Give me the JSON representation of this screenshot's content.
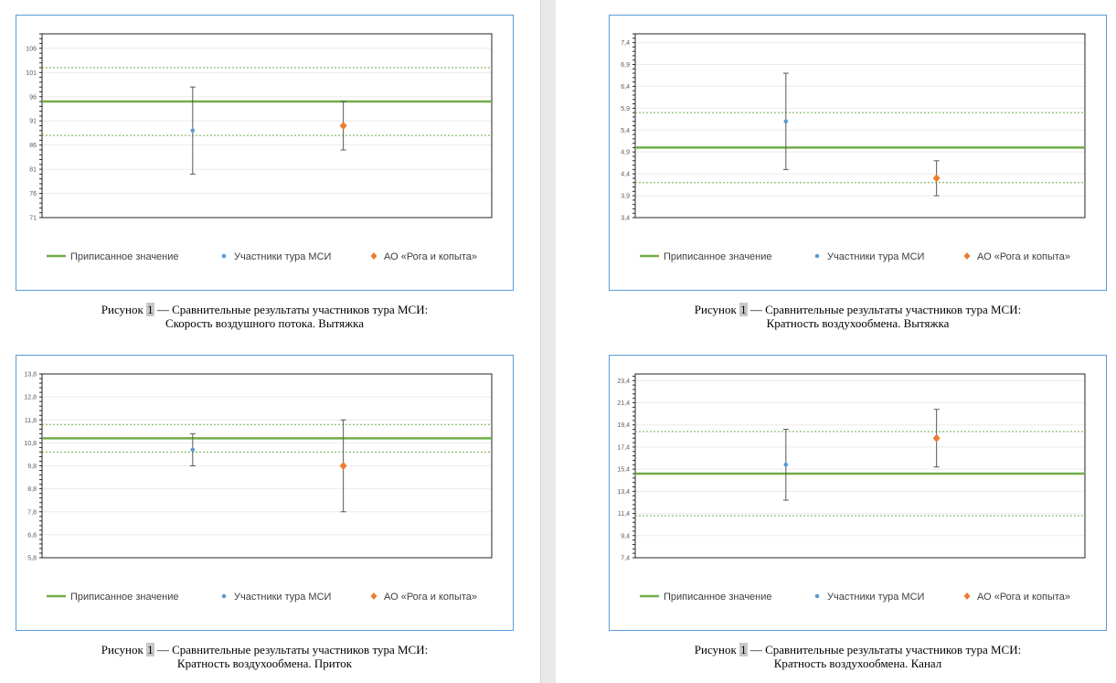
{
  "legend": {
    "assigned": "Приписанное значение",
    "participants": "Участники тура МСИ",
    "company": "АО «Рога и копыта»"
  },
  "colors": {
    "assigned": "#70ad47",
    "participants": "#5b9bd5",
    "company": "#ed7d31",
    "error_bar": "#595959",
    "frame": "#5b9bd5"
  },
  "caption_prefix": "Рисунок ",
  "figure_number": "1",
  "caption_line1_rest": " — Сравнительные результаты участников тура МСИ:",
  "chart_data": [
    {
      "type": "scatter",
      "subtitle": "Скорость воздушного потока. Вытяжка",
      "ylim": [
        71,
        109
      ],
      "yticks": [
        "71",
        "76",
        "81",
        "86",
        "91",
        "96",
        "101",
        "106"
      ],
      "assigned_value": 95,
      "limit_upper": 102,
      "limit_lower": 88,
      "series": [
        {
          "name": "Участники тура МСИ",
          "x": 1,
          "y": 89,
          "err_low": 80,
          "err_high": 98
        },
        {
          "name": "АО «Рога и копыта»",
          "x": 2,
          "y": 90,
          "err_low": 85,
          "err_high": 95
        }
      ]
    },
    {
      "type": "scatter",
      "subtitle": "Кратность воздухообмена. Вытяжка",
      "ylim": [
        3.4,
        7.6
      ],
      "yticks": [
        "3,4",
        "3,9",
        "4,4",
        "4,9",
        "5,4",
        "5,9",
        "6,4",
        "6,9",
        "7,4"
      ],
      "assigned_value": 5.0,
      "limit_upper": 5.8,
      "limit_lower": 4.2,
      "series": [
        {
          "name": "Участники тура МСИ",
          "x": 1,
          "y": 5.6,
          "err_low": 4.5,
          "err_high": 6.7
        },
        {
          "name": "АО «Рога и копыта»",
          "x": 2,
          "y": 4.3,
          "err_low": 3.9,
          "err_high": 4.7
        }
      ]
    },
    {
      "type": "scatter",
      "subtitle": "Кратность воздухообмена. Приток",
      "ylim": [
        5.8,
        13.8
      ],
      "yticks": [
        "5,8",
        "6,8",
        "7,8",
        "8,8",
        "9,8",
        "10,8",
        "11,8",
        "12,8",
        "13,8"
      ],
      "assigned_value": 11.0,
      "limit_upper": 11.6,
      "limit_lower": 10.4,
      "series": [
        {
          "name": "Участники тура МСИ",
          "x": 1,
          "y": 10.5,
          "err_low": 9.8,
          "err_high": 11.2
        },
        {
          "name": "АО «Рога и копыта»",
          "x": 2,
          "y": 9.8,
          "err_low": 7.8,
          "err_high": 11.8
        }
      ]
    },
    {
      "type": "scatter",
      "subtitle": "Кратность воздухообмена. Канал",
      "ylim": [
        7.4,
        24.0
      ],
      "yticks": [
        "7,4",
        "9,4",
        "11,4",
        "13,4",
        "15,4",
        "17,4",
        "19,4",
        "21,4",
        "23,4"
      ],
      "assigned_value": 15.0,
      "limit_upper": 18.8,
      "limit_lower": 11.2,
      "series": [
        {
          "name": "Участники тура МСИ",
          "x": 1,
          "y": 15.8,
          "err_low": 12.6,
          "err_high": 19.0
        },
        {
          "name": "АО «Рога и копыта»",
          "x": 2,
          "y": 18.2,
          "err_low": 15.6,
          "err_high": 20.8
        }
      ]
    }
  ]
}
